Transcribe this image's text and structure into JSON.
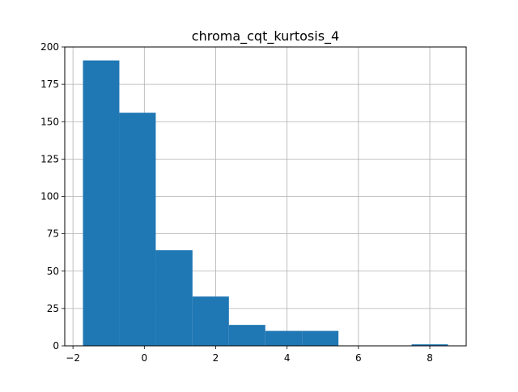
{
  "chart_data": {
    "type": "bar",
    "title": "chroma_cqt_kurtosis_4",
    "xlabel": "",
    "ylabel": "",
    "bin_edges": [
      -1.72,
      -0.7,
      0.32,
      1.35,
      2.37,
      3.39,
      4.42,
      5.44,
      6.46,
      7.49,
      8.51
    ],
    "values": [
      191,
      156,
      64,
      33,
      14,
      10,
      10,
      0,
      0,
      1
    ],
    "xlim": [
      -2.23,
      9.02
    ],
    "ylim": [
      0,
      200
    ],
    "xticks": [
      -2,
      0,
      2,
      4,
      6,
      8
    ],
    "xtick_labels": [
      "−2",
      "0",
      "2",
      "4",
      "6",
      "8"
    ],
    "yticks": [
      0,
      25,
      50,
      75,
      100,
      125,
      150,
      175,
      200
    ],
    "ytick_labels": [
      "0",
      "25",
      "50",
      "75",
      "100",
      "125",
      "150",
      "175",
      "200"
    ],
    "grid": true,
    "bar_color": "#1f77b4",
    "grid_color": "#b0b0b0"
  }
}
